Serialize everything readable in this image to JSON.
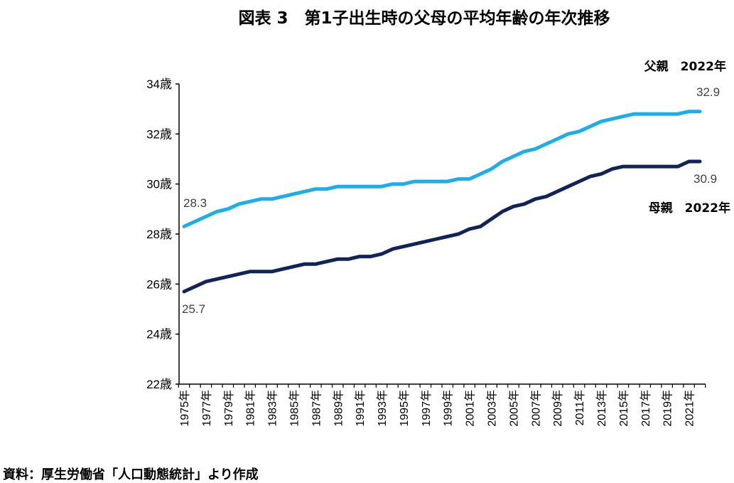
{
  "chart_data": {
    "type": "line",
    "title": "図表 3　第1子出生時の父母の平均年齢の年次推移",
    "source": "資料：厚生労働省「人口動態統計」より作成",
    "ylim": [
      22,
      34
    ],
    "yticks": [
      "22歳",
      "24歳",
      "26歳",
      "28歳",
      "30歳",
      "32歳",
      "34歳"
    ],
    "x": [
      1975,
      1976,
      1977,
      1978,
      1979,
      1980,
      1981,
      1982,
      1983,
      1984,
      1985,
      1986,
      1987,
      1988,
      1989,
      1990,
      1991,
      1992,
      1993,
      1994,
      1995,
      1996,
      1997,
      1998,
      1999,
      2000,
      2001,
      2002,
      2003,
      2004,
      2005,
      2006,
      2007,
      2008,
      2009,
      2010,
      2011,
      2012,
      2013,
      2014,
      2015,
      2016,
      2017,
      2018,
      2019,
      2020,
      2021,
      2022
    ],
    "xtick_labels": [
      "1975年",
      "1977年",
      "1979年",
      "1981年",
      "1983年",
      "1985年",
      "1987年",
      "1989年",
      "1991年",
      "1993年",
      "1995年",
      "1997年",
      "1999年",
      "2001年",
      "2003年",
      "2005年",
      "2007年",
      "2009年",
      "2011年",
      "2013年",
      "2015年",
      "2017年",
      "2019年",
      "2021年"
    ],
    "grid": false,
    "series": [
      {
        "name": "父親　2022年",
        "color": "#1aaeea",
        "values": [
          28.3,
          28.5,
          28.7,
          28.9,
          29.0,
          29.2,
          29.3,
          29.4,
          29.4,
          29.5,
          29.6,
          29.7,
          29.8,
          29.8,
          29.9,
          29.9,
          29.9,
          29.9,
          29.9,
          30.0,
          30.0,
          30.1,
          30.1,
          30.1,
          30.1,
          30.2,
          30.2,
          30.4,
          30.6,
          30.9,
          31.1,
          31.3,
          31.4,
          31.6,
          31.8,
          32.0,
          32.1,
          32.3,
          32.5,
          32.6,
          32.7,
          32.8,
          32.8,
          32.8,
          32.8,
          32.8,
          32.9,
          32.9
        ],
        "start_label": "28.3",
        "end_label": "32.9"
      },
      {
        "name": "母親　2022年",
        "color": "#10245a",
        "values": [
          25.7,
          25.9,
          26.1,
          26.2,
          26.3,
          26.4,
          26.5,
          26.5,
          26.5,
          26.6,
          26.7,
          26.8,
          26.8,
          26.9,
          27.0,
          27.0,
          27.1,
          27.1,
          27.2,
          27.4,
          27.5,
          27.6,
          27.7,
          27.8,
          27.9,
          28.0,
          28.2,
          28.3,
          28.6,
          28.9,
          29.1,
          29.2,
          29.4,
          29.5,
          29.7,
          29.9,
          30.1,
          30.3,
          30.4,
          30.6,
          30.7,
          30.7,
          30.7,
          30.7,
          30.7,
          30.7,
          30.9,
          30.9
        ],
        "start_label": "25.7",
        "end_label": "30.9"
      }
    ]
  }
}
